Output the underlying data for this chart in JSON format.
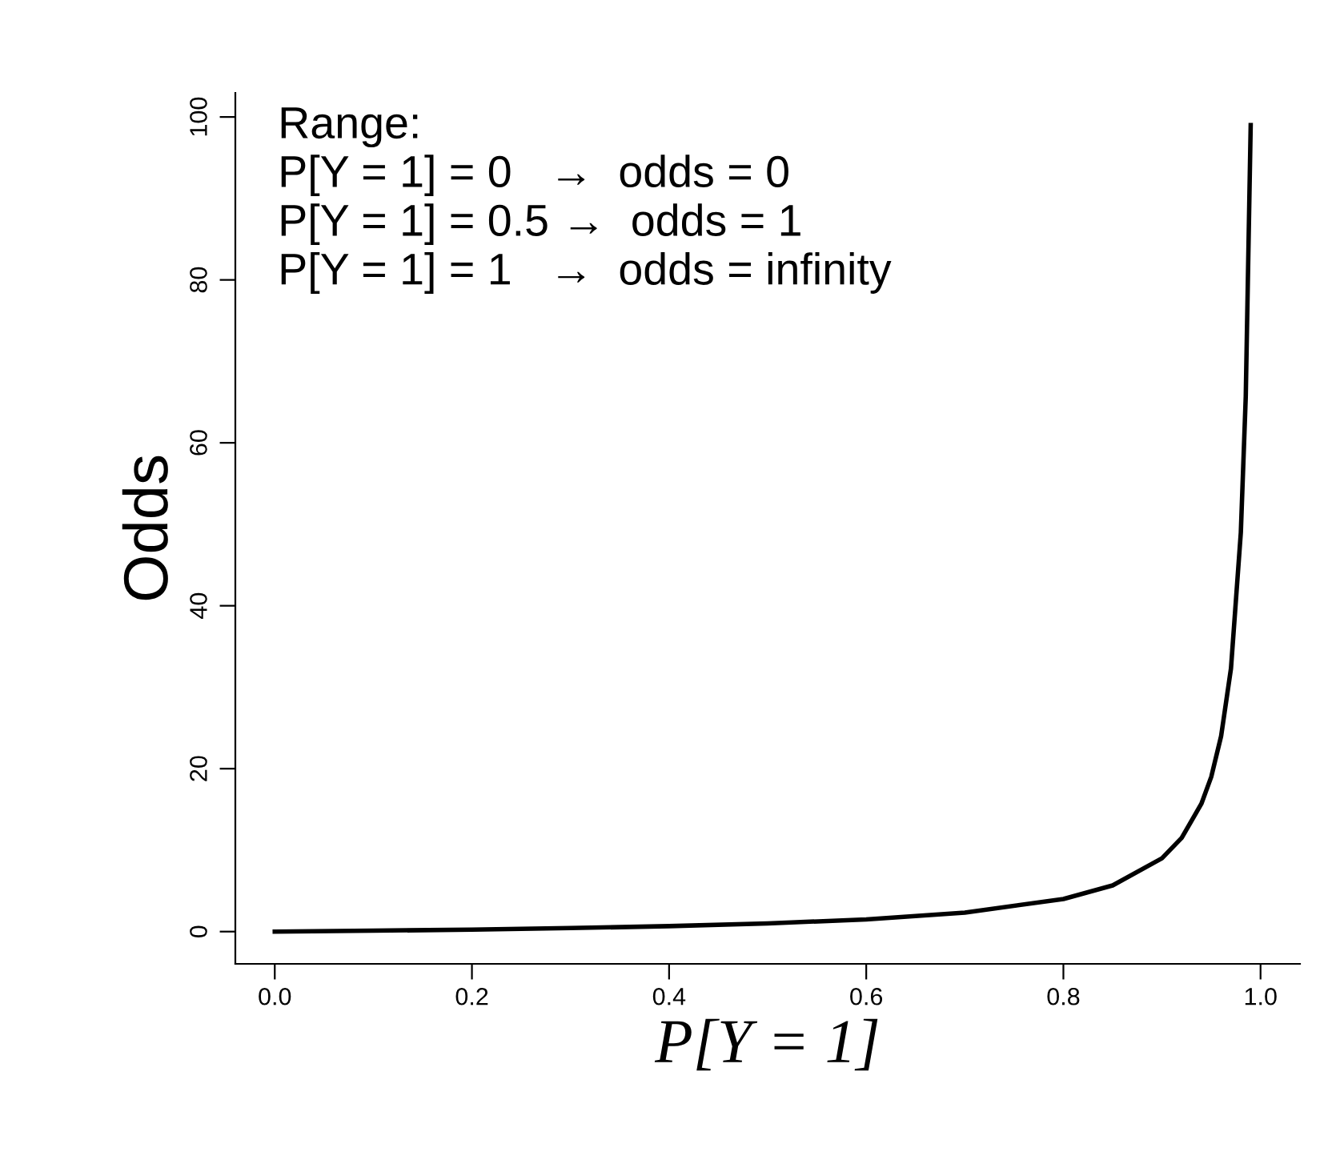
{
  "chart_data": {
    "type": "line",
    "xlabel": "P[Y = 1]",
    "ylabel": "Odds",
    "x": [
      0,
      0.1,
      0.2,
      0.3,
      0.4,
      0.5,
      0.6,
      0.7,
      0.8,
      0.85,
      0.9,
      0.92,
      0.94,
      0.95,
      0.96,
      0.97,
      0.98,
      0.985,
      0.99
    ],
    "series": [
      {
        "color": "#000000",
        "values": [
          0,
          0.11,
          0.25,
          0.43,
          0.67,
          1,
          1.5,
          2.33,
          4,
          5.67,
          9,
          11.5,
          15.7,
          19,
          24,
          32.3,
          49,
          65.7,
          99
        ]
      }
    ],
    "xlim": [
      -0.04,
      1.04
    ],
    "ylim": [
      -3.96,
      102.96
    ],
    "xticks": [
      {
        "value": 0,
        "label": "0.0"
      },
      0.2,
      0.4,
      0.6,
      0.8,
      {
        "value": 1,
        "label": "1.0"
      }
    ],
    "yticks": [
      0,
      20,
      40,
      60,
      80,
      100
    ],
    "annotations": [
      "Range:",
      "P[Y = 1] = 0   →  odds = 0",
      "P[Y = 1] = 0.5 →  odds = 1",
      "P[Y = 1] = 1   →  odds = infinity"
    ],
    "grid": false,
    "legend": false,
    "marker": "none",
    "line_style": "solid"
  }
}
